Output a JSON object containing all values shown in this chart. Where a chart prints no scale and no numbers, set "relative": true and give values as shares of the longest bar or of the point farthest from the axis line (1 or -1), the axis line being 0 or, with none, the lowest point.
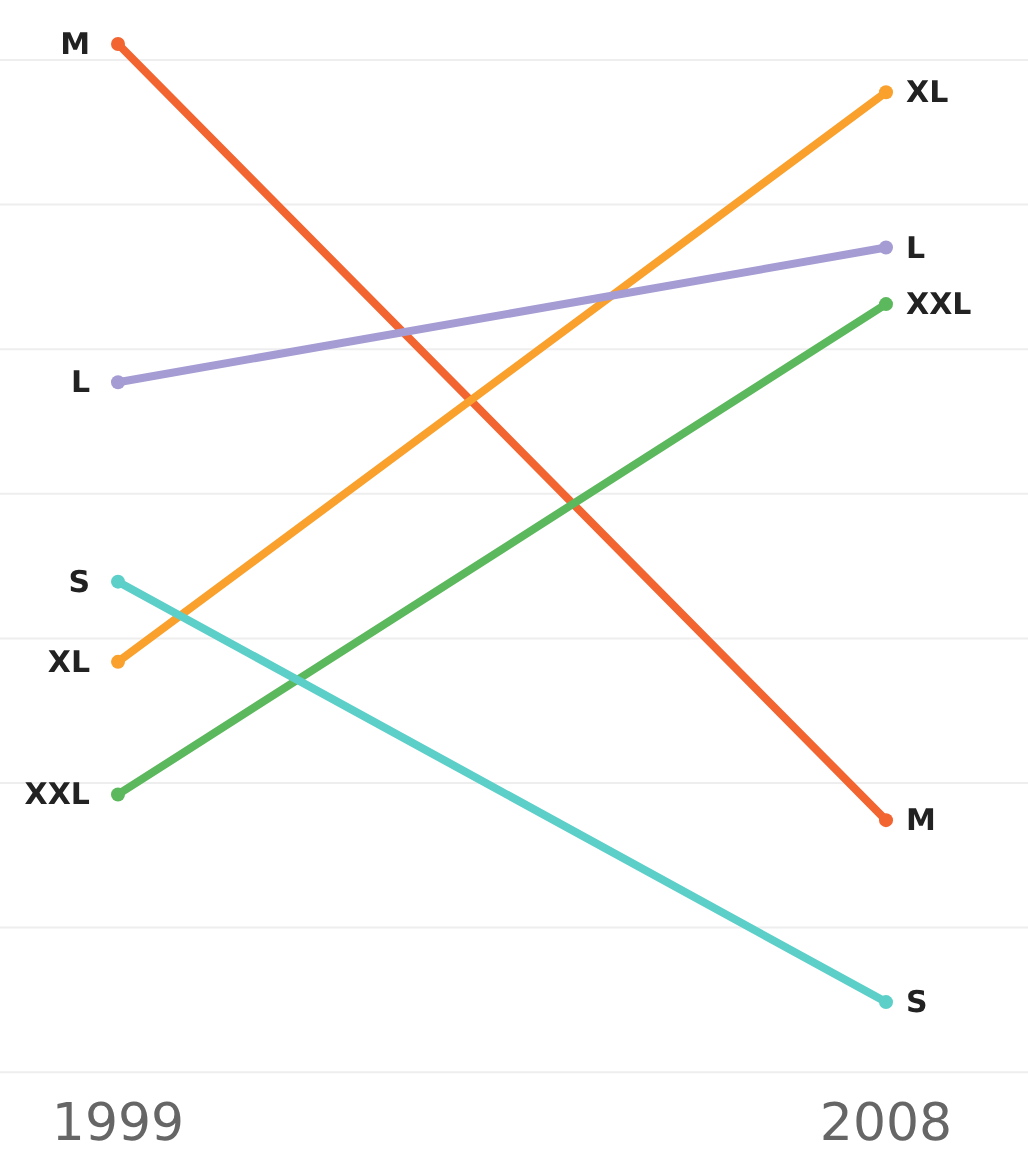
{
  "chart_data": {
    "type": "line",
    "relative": true,
    "categories": [
      "1999",
      "2008"
    ],
    "grid": true,
    "marker": "circle",
    "line_style": "solid",
    "series": [
      {
        "name": "M",
        "color": "#f26430",
        "values": [
          1,
          0.245
        ]
      },
      {
        "name": "XL",
        "color": "#f9a12c",
        "values": [
          0.399,
          0.953
        ]
      },
      {
        "name": "L",
        "color": "#a59cd3",
        "values": [
          0.671,
          0.802
        ]
      },
      {
        "name": "XXL",
        "color": "#5cb85c",
        "values": [
          0.27,
          0.747
        ]
      },
      {
        "name": "S",
        "color": "#5ccfc9",
        "values": [
          0.477,
          0.068
        ]
      }
    ]
  }
}
